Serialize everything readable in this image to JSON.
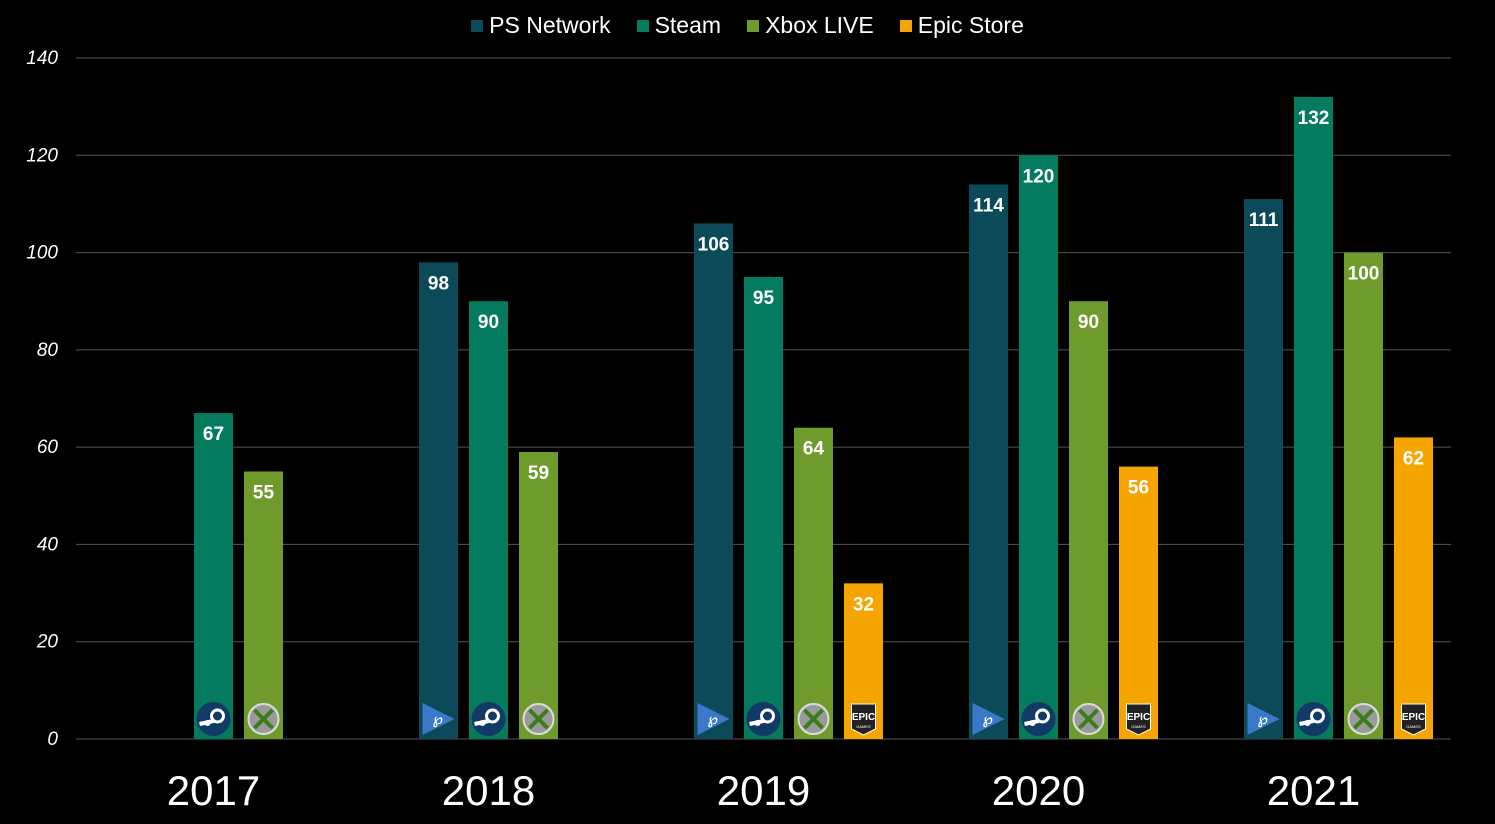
{
  "chart_data": {
    "type": "bar",
    "title": "",
    "xlabel": "",
    "ylabel": "",
    "ylim": [
      0,
      140
    ],
    "yticks": [
      0,
      20,
      40,
      60,
      80,
      100,
      120,
      140
    ],
    "grid": true,
    "legend_position": "top-center",
    "categories": [
      "2017",
      "2018",
      "2019",
      "2020",
      "2021"
    ],
    "series": [
      {
        "name": "PS Network",
        "color": "#0c4a5a",
        "icon": "playstation-icon",
        "values": [
          null,
          98,
          106,
          114,
          111
        ]
      },
      {
        "name": "Steam",
        "color": "#047b5f",
        "icon": "steam-icon",
        "values": [
          67,
          90,
          95,
          120,
          132
        ]
      },
      {
        "name": "Xbox LIVE",
        "color": "#6f9a2c",
        "icon": "xbox-icon",
        "values": [
          55,
          59,
          64,
          90,
          100
        ]
      },
      {
        "name": "Epic Store",
        "color": "#f6a500",
        "icon": "epic-games-icon",
        "values": [
          null,
          null,
          32,
          56,
          62
        ]
      }
    ]
  },
  "icon_labels": {
    "epic": "EPIC",
    "games": "GAMES"
  }
}
